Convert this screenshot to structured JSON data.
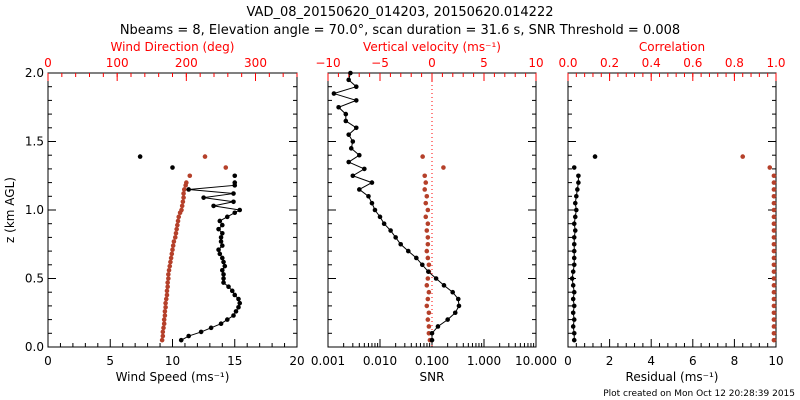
{
  "chart_data": [
    {
      "type": "scatter",
      "title_line1": "VAD_08_20150620_014203, 20150620.014222",
      "title_line2": "Nbeams = 8, Elevation angle = 70.0°, scan duration = 31.6 s, SNR Threshold = 0.008",
      "ylabel": "z (km AGL)",
      "ylim": [
        0,
        2
      ],
      "yticks": [
        "0.0",
        "0.5",
        "1.0",
        "1.5",
        "2.0"
      ],
      "xlabel": "Wind Speed (ms⁻¹)",
      "xlim": [
        0,
        20
      ],
      "xticks": [
        "0",
        "5",
        "10",
        "15",
        "20"
      ],
      "top_label": "Wind Direction (deg)",
      "top_lim": [
        0,
        360
      ],
      "top_ticks": [
        "0",
        "100",
        "200",
        "300"
      ],
      "z": [
        0.05,
        0.08,
        0.11,
        0.14,
        0.17,
        0.2,
        0.23,
        0.26,
        0.29,
        0.32,
        0.35,
        0.38,
        0.41,
        0.44,
        0.47,
        0.5,
        0.53,
        0.56,
        0.59,
        0.62,
        0.65,
        0.68,
        0.71,
        0.74,
        0.77,
        0.8,
        0.83,
        0.86,
        0.89,
        0.92,
        0.95,
        0.98,
        1.0,
        1.03,
        1.06,
        1.09,
        1.12,
        1.15,
        1.18,
        1.2,
        1.25,
        1.31,
        1.39
      ],
      "series": [
        {
          "name": "Wind Speed",
          "color": "#000000",
          "connected_until": 40,
          "values": [
            10.7,
            11.3,
            12.3,
            13.1,
            13.9,
            14.4,
            14.9,
            15.1,
            15.3,
            15.4,
            15.3,
            15.0,
            14.8,
            14.5,
            14.1,
            14.1,
            14.1,
            14.0,
            14.2,
            14.1,
            14.0,
            13.8,
            13.7,
            14.0,
            13.9,
            13.9,
            14.0,
            13.7,
            14.0,
            13.8,
            14.4,
            15.0,
            15.4,
            13.3,
            14.9,
            12.5,
            14.9,
            11.3,
            15.0,
            15.0,
            15.0,
            10.0,
            7.4
          ]
        },
        {
          "name": "Wind Direction",
          "color": "#b5402a",
          "values": [
            165,
            166,
            166,
            167,
            168,
            168,
            169,
            169,
            170,
            170,
            171,
            172,
            172,
            173,
            173,
            174,
            174,
            175,
            176,
            177,
            178,
            179,
            180,
            181,
            182,
            184,
            185,
            186,
            187,
            188,
            189,
            191,
            193,
            194,
            195,
            196,
            196,
            197,
            199,
            200,
            205,
            257,
            227
          ]
        }
      ]
    },
    {
      "type": "scatter",
      "xlabel": "SNR",
      "xscale": "log",
      "xlim": [
        0.001,
        10
      ],
      "xticks": [
        "0.001",
        "0.010",
        "0.100",
        "1.000",
        "10.000"
      ],
      "top_label": "Vertical velocity (ms⁻¹)",
      "top_lim": [
        -10,
        10
      ],
      "top_ticks": [
        "−10",
        "−5",
        "0",
        "5",
        "10"
      ],
      "snr_z": [
        0.05,
        0.1,
        0.15,
        0.2,
        0.25,
        0.3,
        0.35,
        0.4,
        0.45,
        0.5,
        0.55,
        0.6,
        0.65,
        0.7,
        0.75,
        0.8,
        0.85,
        0.9,
        0.95,
        1.0,
        1.05,
        1.1,
        1.15,
        1.2,
        1.25,
        1.3,
        1.35,
        1.4,
        1.45,
        1.5,
        1.55,
        1.6,
        1.65,
        1.7,
        1.75,
        1.8,
        1.85,
        1.9,
        1.95,
        2.0
      ],
      "snr": [
        0.1,
        0.1,
        0.13,
        0.2,
        0.28,
        0.33,
        0.32,
        0.25,
        0.17,
        0.12,
        0.085,
        0.065,
        0.05,
        0.035,
        0.025,
        0.02,
        0.016,
        0.012,
        0.01,
        0.008,
        0.007,
        0.006,
        0.004,
        0.007,
        0.003,
        0.005,
        0.0025,
        0.004,
        0.0028,
        0.003,
        0.0025,
        0.0035,
        0.0022,
        0.0022,
        0.0016,
        0.0035,
        0.0013,
        0.0035,
        0.0025,
        0.0027
      ],
      "vv_z": [
        0.05,
        0.1,
        0.15,
        0.2,
        0.25,
        0.3,
        0.35,
        0.4,
        0.45,
        0.5,
        0.55,
        0.6,
        0.65,
        0.7,
        0.75,
        0.8,
        0.85,
        0.9,
        0.95,
        1.0,
        1.05,
        1.1,
        1.15,
        1.2,
        1.25,
        1.31,
        1.39
      ],
      "vv": [
        -0.2,
        -0.3,
        -0.3,
        -0.4,
        -0.3,
        -0.5,
        -0.4,
        -0.3,
        -0.5,
        -0.4,
        -0.3,
        -0.3,
        -0.4,
        -0.5,
        -0.4,
        -0.4,
        -0.5,
        -0.4,
        -0.6,
        -0.4,
        -0.6,
        -0.5,
        -0.7,
        -0.6,
        -0.7,
        1.1,
        -0.9
      ]
    },
    {
      "type": "scatter",
      "xlabel": "Residual (ms⁻¹)",
      "xlim": [
        0,
        10
      ],
      "xticks": [
        "0",
        "2",
        "4",
        "6",
        "8",
        "10"
      ],
      "top_label": "Correlation",
      "top_lim": [
        0,
        1
      ],
      "top_ticks": [
        "0.0",
        "0.2",
        "0.4",
        "0.6",
        "0.8",
        "1.0"
      ],
      "z": [
        0.05,
        0.1,
        0.15,
        0.2,
        0.25,
        0.3,
        0.35,
        0.4,
        0.45,
        0.5,
        0.55,
        0.6,
        0.65,
        0.7,
        0.75,
        0.8,
        0.85,
        0.9,
        0.95,
        1.0,
        1.05,
        1.1,
        1.15,
        1.2,
        1.25,
        1.31,
        1.39
      ],
      "residual": [
        0.3,
        0.3,
        0.25,
        0.3,
        0.25,
        0.3,
        0.25,
        0.3,
        0.25,
        0.2,
        0.25,
        0.3,
        0.3,
        0.3,
        0.3,
        0.3,
        0.35,
        0.3,
        0.35,
        0.4,
        0.35,
        0.4,
        0.45,
        0.5,
        0.5,
        0.3,
        1.3
      ],
      "correlation": [
        0.99,
        0.99,
        0.99,
        0.99,
        0.99,
        0.99,
        0.99,
        0.99,
        0.99,
        0.99,
        0.99,
        0.99,
        0.99,
        0.99,
        0.99,
        0.99,
        0.99,
        0.99,
        0.99,
        0.99,
        0.99,
        0.99,
        0.99,
        0.99,
        0.99,
        0.97,
        0.84
      ]
    }
  ],
  "footer": "Plot created on Mon Oct 12 20:28:39 2015",
  "colors": {
    "red_axis": "#ff0000",
    "red_data": "#b5402a",
    "black": "#000000"
  }
}
